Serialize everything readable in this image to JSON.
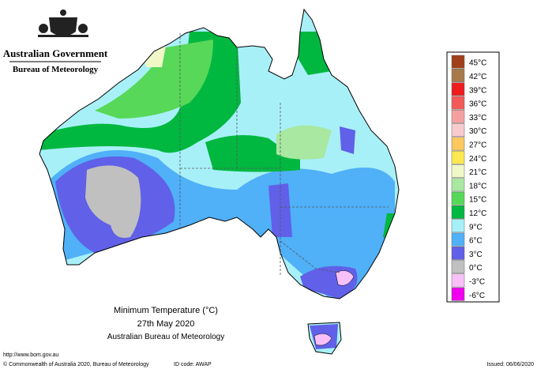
{
  "header": {
    "government": "Australian Government",
    "bureau": "Bureau of Meteorology"
  },
  "legend": {
    "items": [
      {
        "label": "45°C",
        "color": "#a0401a"
      },
      {
        "label": "42°C",
        "color": "#a87a4a"
      },
      {
        "label": "39°C",
        "color": "#ee1c1c"
      },
      {
        "label": "36°C",
        "color": "#f25a5a"
      },
      {
        "label": "33°C",
        "color": "#f5a0a0"
      },
      {
        "label": "30°C",
        "color": "#f8cccc"
      },
      {
        "label": "27°C",
        "color": "#fcc860"
      },
      {
        "label": "24°C",
        "color": "#fce850"
      },
      {
        "label": "21°C",
        "color": "#f0f8c8"
      },
      {
        "label": "18°C",
        "color": "#a8e8a0"
      },
      {
        "label": "15°C",
        "color": "#58d858"
      },
      {
        "label": "12°C",
        "color": "#00b840"
      },
      {
        "label": "9°C",
        "color": "#a8f0f8"
      },
      {
        "label": "6°C",
        "color": "#50b0f8"
      },
      {
        "label": "3°C",
        "color": "#6060e8"
      },
      {
        "label": "0°C",
        "color": "#c0c0c0"
      },
      {
        "label": "-3°C",
        "color": "#f8c0f8"
      },
      {
        "label": "-6°C",
        "color": "#f000f0"
      }
    ]
  },
  "map": {
    "title": "Minimum Temperature (°C)",
    "date": "27th May 2020",
    "source": "Australian Bureau of Meteorology"
  },
  "footer": {
    "url": "http://www.bom.gov.au",
    "copyright": "© Commonwealth of Australia 2020, Bureau of Meteorology",
    "id_code": "ID code: AWAP",
    "issued": "Issued: 06/06/2020"
  }
}
